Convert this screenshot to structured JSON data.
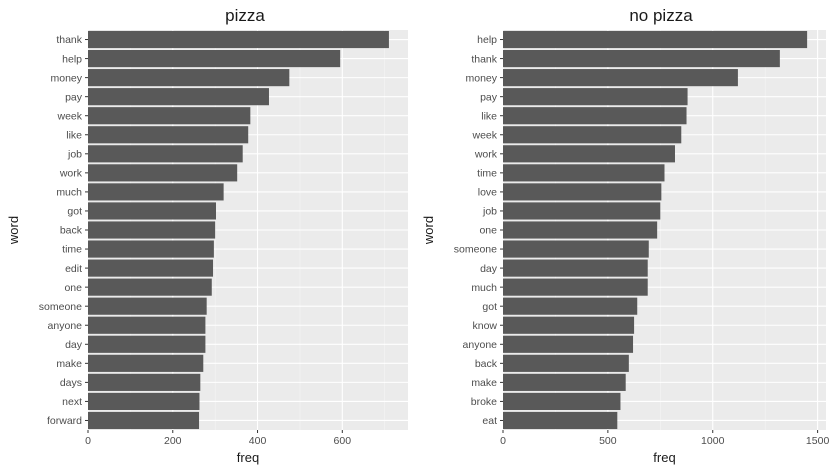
{
  "colors": {
    "panel_bg": "#ebebeb",
    "grid_major": "#ffffff",
    "grid_minor": "#f5f5f5",
    "bar_fill": "#595959",
    "tick": "#333333"
  },
  "chart_data": [
    {
      "type": "bar",
      "orientation": "horizontal",
      "title": "pizza",
      "xlabel": "freq",
      "ylabel": "word",
      "xlim": [
        0,
        755
      ],
      "xticks": [
        0,
        200,
        400,
        600
      ],
      "grid": true,
      "categories": [
        "thank",
        "help",
        "money",
        "pay",
        "week",
        "like",
        "job",
        "work",
        "much",
        "got",
        "back",
        "time",
        "edit",
        "one",
        "someone",
        "anyone",
        "day",
        "make",
        "days",
        "next",
        "forward"
      ],
      "values": [
        710,
        595,
        475,
        427,
        383,
        378,
        365,
        352,
        320,
        302,
        300,
        297,
        295,
        292,
        280,
        277,
        277,
        272,
        265,
        263,
        262
      ]
    },
    {
      "type": "bar",
      "orientation": "horizontal",
      "title": "no pizza",
      "xlabel": "freq",
      "ylabel": "word",
      "xlim": [
        0,
        1540
      ],
      "xticks": [
        0,
        500,
        1000,
        1500
      ],
      "grid": true,
      "categories": [
        "help",
        "thank",
        "money",
        "pay",
        "like",
        "week",
        "work",
        "time",
        "love",
        "job",
        "one",
        "someone",
        "day",
        "much",
        "got",
        "know",
        "anyone",
        "back",
        "make",
        "broke",
        "eat"
      ],
      "values": [
        1450,
        1320,
        1120,
        880,
        875,
        850,
        820,
        770,
        755,
        750,
        735,
        695,
        690,
        690,
        640,
        625,
        620,
        600,
        585,
        560,
        545
      ]
    }
  ]
}
